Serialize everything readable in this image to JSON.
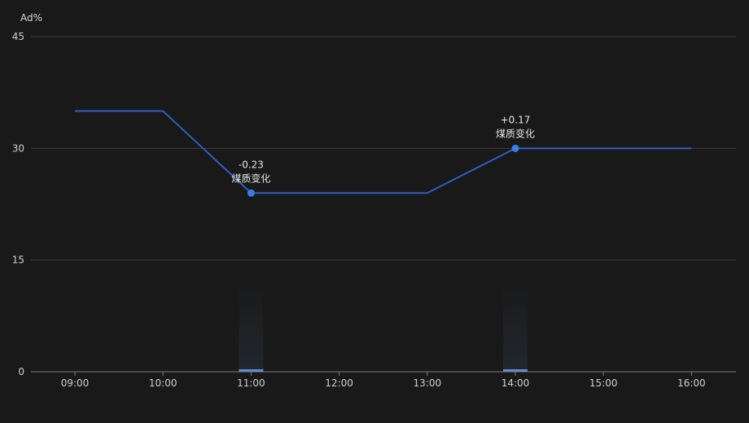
{
  "chart_data": {
    "type": "line",
    "ylabel": "Ad%",
    "ylim": [
      0,
      45
    ],
    "yticks": [
      "0",
      "15",
      "30",
      "45"
    ],
    "categories": [
      "09:00",
      "10:00",
      "11:00",
      "12:00",
      "13:00",
      "14:00",
      "15:00",
      "16:00"
    ],
    "series": [
      {
        "values": [
          35,
          35,
          24,
          24,
          24,
          30,
          30,
          30
        ]
      }
    ],
    "events": [
      {
        "x": "11:00",
        "y": 24,
        "delta": "-0.23",
        "label": "煤质变化"
      },
      {
        "x": "14:00",
        "y": 30,
        "delta": "+0.17",
        "label": "煤质变化"
      }
    ],
    "grid": true,
    "colors": {
      "line": "#2f5fbf",
      "marker": "#3a7bea",
      "grid": "#3a3a3a",
      "axis": "#7a7a7a",
      "event_bar": "#5b8fdc"
    }
  }
}
